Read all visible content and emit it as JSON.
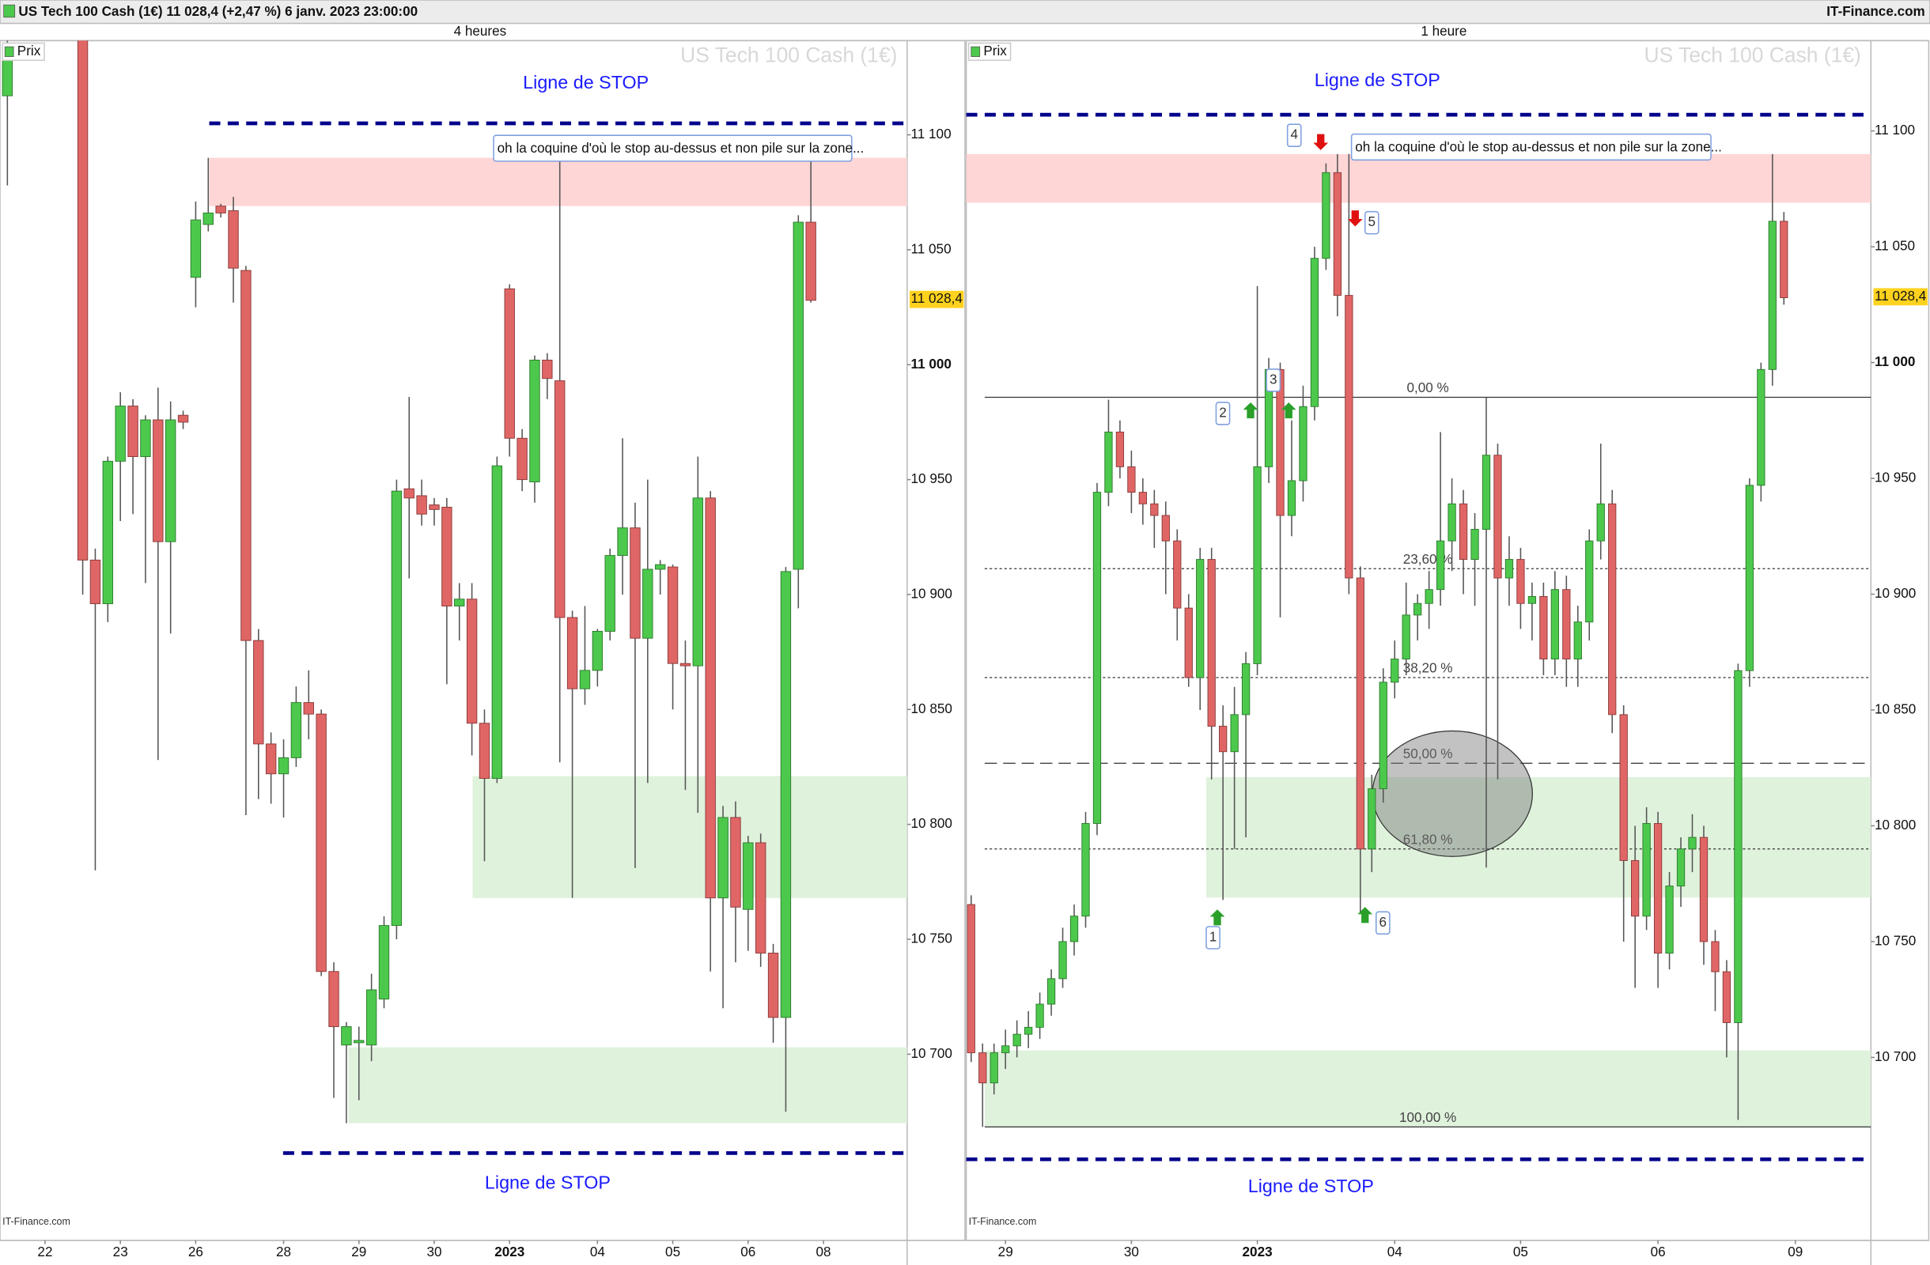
{
  "header": {
    "title": "US Tech 100 Cash (1€) 11 028,4 (+2,47 %) 6 janv. 2023 23:00:00",
    "site": "IT-Finance.com"
  },
  "chart_data": [
    {
      "type": "candlestick",
      "title": "4 heures",
      "watermark": "US Tech 100 Cash (1€)",
      "legend": "Prix",
      "credit": "IT-Finance.com",
      "ylim": [
        10619,
        11141
      ],
      "yticks": [
        {
          "value": 10700,
          "label": "10 700"
        },
        {
          "value": 10750,
          "label": "10 750"
        },
        {
          "value": 10800,
          "label": "10 800"
        },
        {
          "value": 10850,
          "label": "10 850"
        },
        {
          "value": 10900,
          "label": "10 900"
        },
        {
          "value": 10950,
          "label": "10 950"
        },
        {
          "value": 11000,
          "label": "11 000"
        },
        {
          "value": 11050,
          "label": "11 050"
        },
        {
          "value": 11100,
          "label": "11 100"
        }
      ],
      "last_price": {
        "value": 11028.4,
        "label": "11 028,4"
      },
      "up_color": "#4cc94c",
      "down_color": "#e06666",
      "stop_lines": [
        {
          "value": 11105,
          "label": "Ligne de STOP"
        },
        {
          "value": 10657,
          "label": "Ligne de STOP"
        }
      ],
      "zones": [
        {
          "from": 11069,
          "to": 11090,
          "color": "#ffd6d6"
        },
        {
          "from": 10768,
          "to": 10821,
          "color": "#dff2dc"
        },
        {
          "from": 10670,
          "to": 10703,
          "color": "#dff2dc"
        }
      ],
      "comment": "oh la coquine d'où le stop au-dessus et non pile sur la zone...",
      "categories": [
        null,
        null,
        null,
        "22",
        null,
        null,
        null,
        null,
        null,
        "23",
        null,
        null,
        null,
        null,
        null,
        "26",
        null,
        null,
        null,
        null,
        null,
        null,
        "28",
        null,
        null,
        null,
        null,
        null,
        "29",
        null,
        null,
        null,
        null,
        null,
        "30",
        null,
        null,
        null,
        null,
        null,
        "2023",
        null,
        null,
        null,
        null,
        null,
        null,
        "04",
        null,
        null,
        null,
        null,
        null,
        "05",
        null,
        null,
        null,
        null,
        null,
        "06",
        null,
        null,
        null,
        null,
        null,
        "08"
      ],
      "candles": [
        [
          11117,
          11145,
          11078,
          11138
        ],
        null,
        null,
        null,
        null,
        null,
        [
          11160,
          11170,
          10900,
          10915
        ],
        [
          10915,
          10920,
          10780,
          10896
        ],
        [
          10896,
          10960,
          10888,
          10958
        ],
        [
          10958,
          10988,
          10932,
          10982
        ],
        [
          10982,
          10985,
          10935,
          10960
        ],
        [
          10960,
          10978,
          10905,
          10976
        ],
        [
          10976,
          10990,
          10828,
          10923
        ],
        [
          10923,
          10984,
          10883,
          10976
        ],
        [
          10978,
          10980,
          10972,
          10975
        ],
        [
          11038,
          11071,
          11025,
          11063
        ],
        [
          11061,
          11090,
          11058,
          11066
        ],
        [
          11069,
          11070,
          11064,
          11066
        ],
        [
          11067,
          11073,
          11027,
          11042
        ],
        [
          11041,
          11043,
          10804,
          10880
        ],
        [
          10880,
          10885,
          10811,
          10835
        ],
        [
          10835,
          10840,
          10809,
          10822
        ],
        [
          10822,
          10837,
          10803,
          10829
        ],
        [
          10829,
          10860,
          10825,
          10853
        ],
        [
          10853,
          10867,
          10837,
          10848
        ],
        [
          10848,
          10850,
          10734,
          10736
        ],
        [
          10736,
          10740,
          10681,
          10712
        ],
        [
          10704,
          10714,
          10670,
          10712
        ],
        [
          10705,
          10712,
          10680,
          10706
        ],
        [
          10704,
          10735,
          10697,
          10728
        ],
        [
          10724,
          10760,
          10720,
          10756
        ],
        [
          10756,
          10950,
          10750,
          10945
        ],
        [
          10946,
          10986,
          10907,
          10942
        ],
        [
          10943,
          10950,
          10930,
          10935
        ],
        [
          10939,
          10942,
          10930,
          10937
        ],
        [
          10938,
          10942,
          10861,
          10895
        ],
        [
          10895,
          10905,
          10880,
          10898
        ],
        [
          10898,
          10905,
          10830,
          10844
        ],
        [
          10844,
          10850,
          10784,
          10820
        ],
        [
          10820,
          10960,
          10818,
          10956
        ],
        [
          11033,
          11035,
          10960,
          10968
        ],
        [
          10968,
          10972,
          10945,
          10950
        ],
        [
          10949,
          11004,
          10940,
          11002
        ],
        [
          11002,
          11005,
          10985,
          10994
        ],
        [
          10993,
          11094,
          10827,
          10890
        ],
        [
          10890,
          10893,
          10768,
          10859
        ],
        [
          10859,
          10895,
          10852,
          10867
        ],
        [
          10867,
          10885,
          10860,
          10884
        ],
        [
          10884,
          10920,
          10880,
          10917
        ],
        [
          10917,
          10968,
          10900,
          10929
        ],
        [
          10929,
          10940,
          10781,
          10881
        ],
        [
          10881,
          10950,
          10818,
          10911
        ],
        [
          10911,
          10915,
          10900,
          10913
        ],
        [
          10912,
          10913,
          10850,
          10870
        ],
        [
          10870,
          10880,
          10815,
          10869
        ],
        [
          10869,
          10960,
          10805,
          10942
        ],
        [
          10942,
          10945,
          10736,
          10768
        ],
        [
          10768,
          10808,
          10720,
          10803
        ],
        [
          10803,
          10810,
          10740,
          10764
        ],
        [
          10763,
          10795,
          10745,
          10792
        ],
        [
          10792,
          10796,
          10738,
          10744
        ],
        [
          10744,
          10748,
          10705,
          10716
        ],
        [
          10716,
          10912,
          10675,
          10910
        ],
        [
          10911,
          11065,
          10894,
          11062
        ],
        [
          11062,
          11090,
          11027,
          11028
        ],
        null
      ]
    },
    {
      "type": "candlestick",
      "title": "1 heure",
      "watermark": "US Tech 100 Cash (1€)",
      "legend": "Prix",
      "credit": "IT-Finance.com",
      "ylim": [
        10621,
        11139
      ],
      "yticks": [
        {
          "value": 10700,
          "label": "10 700"
        },
        {
          "value": 10750,
          "label": "10 750"
        },
        {
          "value": 10800,
          "label": "10 800"
        },
        {
          "value": 10850,
          "label": "10 850"
        },
        {
          "value": 10900,
          "label": "10 900"
        },
        {
          "value": 10950,
          "label": "10 950"
        },
        {
          "value": 11000,
          "label": "11 000"
        },
        {
          "value": 11050,
          "label": "11 050"
        },
        {
          "value": 11100,
          "label": "11 100"
        }
      ],
      "last_price": {
        "value": 11028.4,
        "label": "11 028,4"
      },
      "up_color": "#4cc94c",
      "down_color": "#e06666",
      "stop_lines": [
        {
          "value": 11107,
          "label": "Ligne de STOP"
        },
        {
          "value": 10656,
          "label": "Ligne de STOP"
        }
      ],
      "zones": [
        {
          "from": 11069,
          "to": 11090,
          "color": "#ffd6d6"
        },
        {
          "from": 10769,
          "to": 10821,
          "color": "#dff2dc"
        },
        {
          "from": 10670,
          "to": 10703,
          "color": "#dff2dc"
        }
      ],
      "fibonacci": [
        {
          "value": 10985,
          "label": "0,00 %"
        },
        {
          "value": 10911,
          "label": "23,60 %"
        },
        {
          "value": 10864,
          "label": "38,20 %"
        },
        {
          "value": 10827,
          "label": "50,00 %"
        },
        {
          "value": 10790,
          "label": "61,80 %"
        },
        {
          "value": 10670,
          "label": "100,00 %"
        }
      ],
      "markers": [
        "1",
        "2",
        "3",
        "4",
        "5",
        "6"
      ],
      "comment": "oh la coquine d'où le stop au-dessus et non pile sur la zone...",
      "categories": [
        null,
        null,
        null,
        "29",
        null,
        null,
        null,
        null,
        null,
        null,
        null,
        null,
        null,
        null,
        "30",
        null,
        null,
        null,
        null,
        null,
        null,
        null,
        null,
        null,
        null,
        "2023",
        null,
        null,
        null,
        null,
        null,
        null,
        null,
        null,
        null,
        null,
        null,
        "04",
        null,
        null,
        null,
        null,
        null,
        null,
        null,
        null,
        null,
        null,
        "05",
        null,
        null,
        null,
        null,
        null,
        null,
        null,
        null,
        null,
        null,
        null,
        "06",
        null,
        null,
        null,
        null,
        null,
        null,
        null,
        null,
        null,
        null,
        null,
        "09"
      ],
      "candles": [
        [
          10766,
          10770,
          10698,
          10702
        ],
        [
          10702,
          10706,
          10670,
          10689
        ],
        [
          10689,
          10706,
          10684,
          10702
        ],
        [
          10702,
          10712,
          10695,
          10705
        ],
        [
          10705,
          10716,
          10700,
          10710
        ],
        [
          10710,
          10720,
          10704,
          10713
        ],
        [
          10713,
          10728,
          10708,
          10723
        ],
        [
          10723,
          10738,
          10718,
          10734
        ],
        [
          10734,
          10756,
          10730,
          10750
        ],
        [
          10750,
          10766,
          10744,
          10761
        ],
        [
          10761,
          10806,
          10756,
          10801
        ],
        [
          10801,
          10948,
          10796,
          10944
        ],
        [
          10944,
          10984,
          10938,
          10970
        ],
        [
          10970,
          10975,
          10950,
          10955
        ],
        [
          10955,
          10962,
          10935,
          10944
        ],
        [
          10944,
          10950,
          10930,
          10939
        ],
        [
          10939,
          10945,
          10920,
          10934
        ],
        [
          10934,
          10940,
          10900,
          10923
        ],
        [
          10923,
          10928,
          10880,
          10894
        ],
        [
          10894,
          10900,
          10860,
          10864
        ],
        [
          10864,
          10920,
          10850,
          10915
        ],
        [
          10915,
          10920,
          10820,
          10843
        ],
        [
          10843,
          10852,
          10768,
          10832
        ],
        [
          10832,
          10860,
          10790,
          10848
        ],
        [
          10848,
          10875,
          10795,
          10870
        ],
        [
          10870,
          11033,
          10865,
          10955
        ],
        [
          10955,
          11002,
          10948,
          10997
        ],
        [
          10997,
          11000,
          10890,
          10934
        ],
        [
          10934,
          10975,
          10925,
          10949
        ],
        [
          10949,
          10990,
          10940,
          10981
        ],
        [
          10981,
          11050,
          10975,
          11045
        ],
        [
          11045,
          11086,
          11040,
          11082
        ],
        [
          11082,
          11090,
          11020,
          11029
        ],
        [
          11029,
          11090,
          10900,
          10907
        ],
        [
          10907,
          10912,
          10762,
          10790
        ],
        [
          10790,
          10822,
          10780,
          10816
        ],
        [
          10816,
          10868,
          10810,
          10862
        ],
        [
          10862,
          10880,
          10855,
          10872
        ],
        [
          10872,
          10905,
          10865,
          10891
        ],
        [
          10891,
          10900,
          10880,
          10896
        ],
        [
          10896,
          10910,
          10885,
          10902
        ],
        [
          10902,
          10970,
          10895,
          10923
        ],
        [
          10923,
          10950,
          10910,
          10939
        ],
        [
          10939,
          10945,
          10900,
          10915
        ],
        [
          10915,
          10935,
          10895,
          10928
        ],
        [
          10928,
          10985,
          10782,
          10960
        ],
        [
          10960,
          10965,
          10820,
          10907
        ],
        [
          10907,
          10925,
          10895,
          10915
        ],
        [
          10915,
          10920,
          10885,
          10896
        ],
        [
          10896,
          10905,
          10880,
          10899
        ],
        [
          10899,
          10905,
          10865,
          10872
        ],
        [
          10872,
          10910,
          10865,
          10902
        ],
        [
          10902,
          10908,
          10860,
          10872
        ],
        [
          10872,
          10895,
          10860,
          10888
        ],
        [
          10888,
          10928,
          10880,
          10923
        ],
        [
          10923,
          10965,
          10915,
          10939
        ],
        [
          10939,
          10945,
          10840,
          10848
        ],
        [
          10848,
          10852,
          10750,
          10785
        ],
        [
          10785,
          10800,
          10730,
          10761
        ],
        [
          10761,
          10808,
          10755,
          10801
        ],
        [
          10801,
          10806,
          10730,
          10745
        ],
        [
          10745,
          10780,
          10738,
          10774
        ],
        [
          10774,
          10795,
          10765,
          10790
        ],
        [
          10790,
          10805,
          10780,
          10795
        ],
        [
          10795,
          10800,
          10740,
          10750
        ],
        [
          10750,
          10755,
          10720,
          10737
        ],
        [
          10737,
          10742,
          10700,
          10715
        ],
        [
          10715,
          10870,
          10673,
          10867
        ],
        [
          10867,
          10950,
          10860,
          10947
        ],
        [
          10947,
          11000,
          10940,
          10997
        ],
        [
          10997,
          11090,
          10990,
          11061
        ],
        [
          11061,
          11065,
          11025,
          11028
        ],
        null
      ]
    }
  ]
}
